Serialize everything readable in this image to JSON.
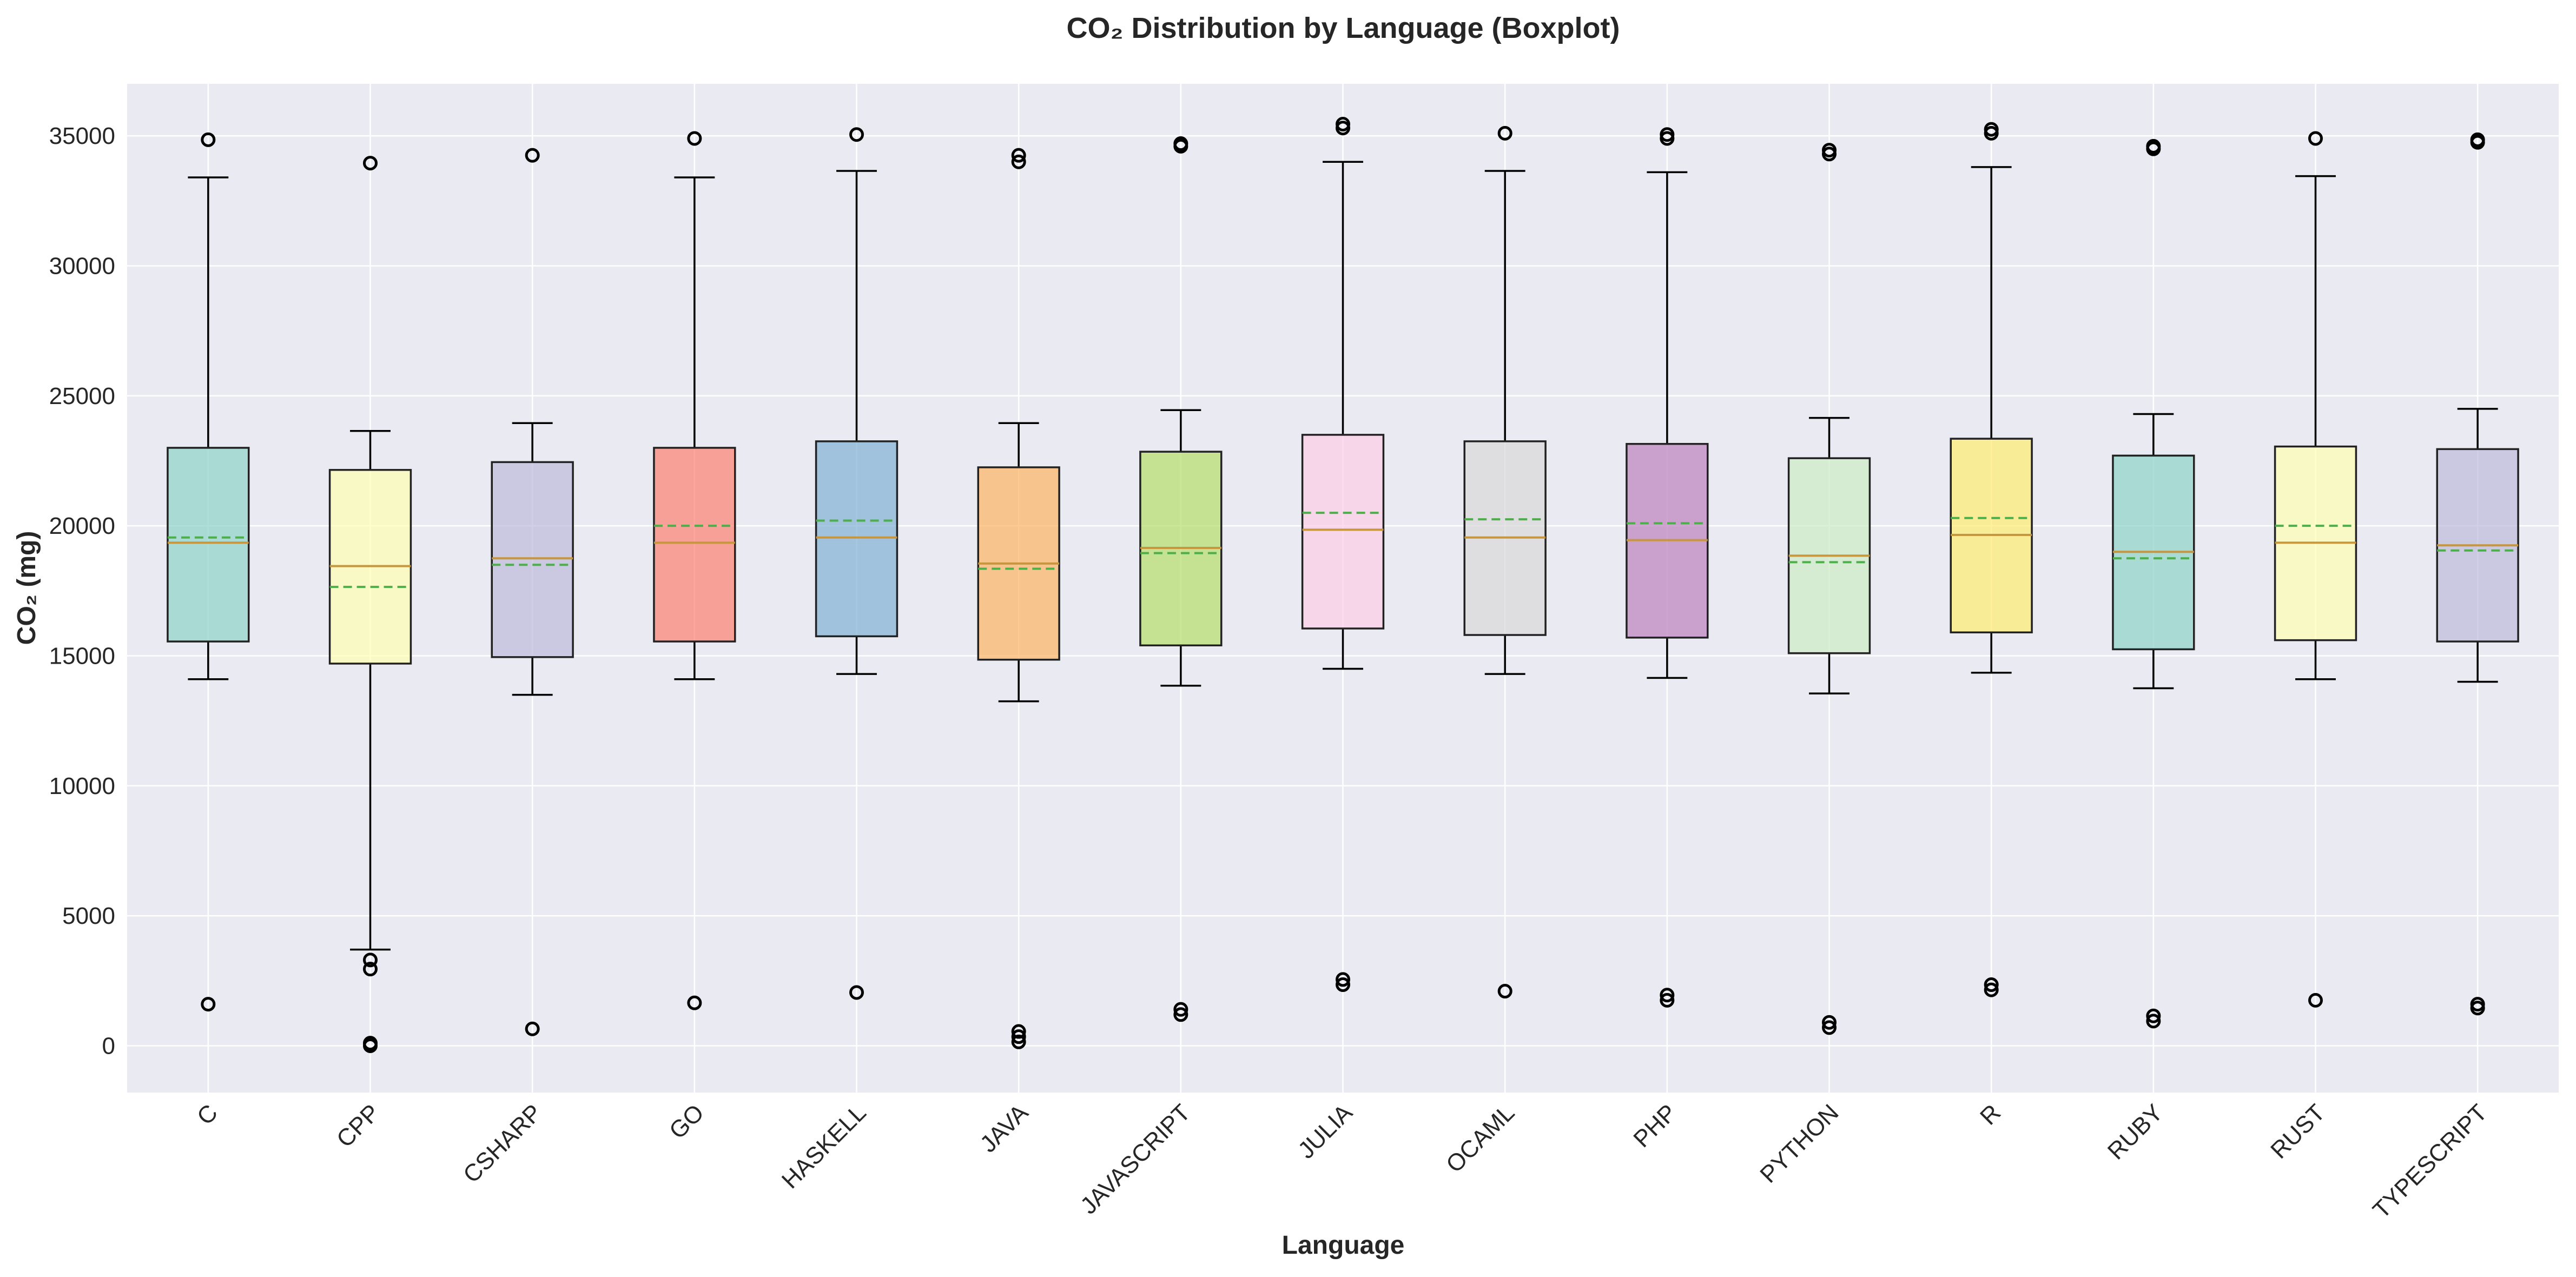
{
  "chart_data": {
    "type": "boxplot",
    "title": "CO₂ Distribution by Language (Boxplot)",
    "xlabel": "Language",
    "ylabel": "CO₂ (mg)",
    "ylim": [
      -1800,
      37000
    ],
    "yticks": [
      0,
      5000,
      10000,
      15000,
      20000,
      25000,
      30000,
      35000
    ],
    "grid": true,
    "background": "#EAEAF2",
    "median_color": "#C8963C",
    "mean_color": "#4DAF4A",
    "categories": [
      "C",
      "CPP",
      "CSHARP",
      "GO",
      "HASKELL",
      "JAVA",
      "JAVASCRIPT",
      "JULIA",
      "OCAML",
      "PHP",
      "PYTHON",
      "R",
      "RUBY",
      "RUST",
      "TYPESCRIPT"
    ],
    "boxes": [
      {
        "name": "C",
        "whisker_low": 14100,
        "q1": 15550,
        "median": 19350,
        "mean": 19550,
        "q3": 23000,
        "whisker_high": 33400,
        "outliers": [
          34850,
          1600
        ],
        "color": "#8DD3C7"
      },
      {
        "name": "CPP",
        "whisker_low": 3700,
        "q1": 14700,
        "median": 18450,
        "mean": 17650,
        "q3": 22150,
        "whisker_high": 23650,
        "outliers": [
          33950,
          3300,
          2950,
          100,
          0
        ],
        "color": "#FFFFB3"
      },
      {
        "name": "CSHARP",
        "whisker_low": 13500,
        "q1": 14950,
        "median": 18750,
        "mean": 18500,
        "q3": 22450,
        "whisker_high": 23950,
        "outliers": [
          34250,
          650
        ],
        "color": "#BEBADA"
      },
      {
        "name": "GO",
        "whisker_low": 14100,
        "q1": 15550,
        "median": 19350,
        "mean": 20000,
        "q3": 23000,
        "whisker_high": 33400,
        "outliers": [
          34900,
          1650
        ],
        "color": "#FB8072"
      },
      {
        "name": "HASKELL",
        "whisker_low": 14300,
        "q1": 15750,
        "median": 19550,
        "mean": 20200,
        "q3": 23250,
        "whisker_high": 33650,
        "outliers": [
          35050,
          2050
        ],
        "color": "#80B1D3"
      },
      {
        "name": "JAVA",
        "whisker_low": 13250,
        "q1": 14850,
        "median": 18550,
        "mean": 18350,
        "q3": 22250,
        "whisker_high": 23950,
        "outliers": [
          34250,
          34000,
          550,
          350,
          150
        ],
        "color": "#FDB462"
      },
      {
        "name": "JAVASCRIPT",
        "whisker_low": 13850,
        "q1": 15400,
        "median": 19150,
        "mean": 18950,
        "q3": 22850,
        "whisker_high": 24450,
        "outliers": [
          34700,
          34600,
          1400,
          1200
        ],
        "color": "#B3DE69"
      },
      {
        "name": "JULIA",
        "whisker_low": 14500,
        "q1": 16050,
        "median": 19850,
        "mean": 20500,
        "q3": 23500,
        "whisker_high": 34000,
        "outliers": [
          35450,
          35300,
          2550,
          2350
        ],
        "color": "#FCCDE5"
      },
      {
        "name": "OCAML",
        "whisker_low": 14300,
        "q1": 15800,
        "median": 19550,
        "mean": 20250,
        "q3": 23250,
        "whisker_high": 33650,
        "outliers": [
          35100,
          2100
        ],
        "color": "#D9D9D9"
      },
      {
        "name": "PHP",
        "whisker_low": 14150,
        "q1": 15700,
        "median": 19450,
        "mean": 20100,
        "q3": 23150,
        "whisker_high": 33600,
        "outliers": [
          35050,
          34900,
          1950,
          1750
        ],
        "color": "#BC80BD"
      },
      {
        "name": "PYTHON",
        "whisker_low": 13550,
        "q1": 15100,
        "median": 18850,
        "mean": 18600,
        "q3": 22600,
        "whisker_high": 24150,
        "outliers": [
          34450,
          34300,
          900,
          700
        ],
        "color": "#CCEBC5"
      },
      {
        "name": "R",
        "whisker_low": 14350,
        "q1": 15900,
        "median": 19650,
        "mean": 20300,
        "q3": 23350,
        "whisker_high": 33800,
        "outliers": [
          35250,
          35100,
          2350,
          2150
        ],
        "color": "#FFED6F"
      },
      {
        "name": "RUBY",
        "whisker_low": 13750,
        "q1": 15250,
        "median": 19000,
        "mean": 18750,
        "q3": 22700,
        "whisker_high": 24300,
        "outliers": [
          34600,
          34500,
          1150,
          950
        ],
        "color": "#8DD3C7"
      },
      {
        "name": "RUST",
        "whisker_low": 14100,
        "q1": 15600,
        "median": 19350,
        "mean": 20000,
        "q3": 23050,
        "whisker_high": 33450,
        "outliers": [
          34900,
          1750
        ],
        "color": "#FFFFB3"
      },
      {
        "name": "TYPESCRIPT",
        "whisker_low": 14000,
        "q1": 15550,
        "median": 19250,
        "mean": 19050,
        "q3": 22950,
        "whisker_high": 24500,
        "outliers": [
          34850,
          34750,
          1600,
          1450
        ],
        "color": "#BEBADA"
      }
    ]
  }
}
